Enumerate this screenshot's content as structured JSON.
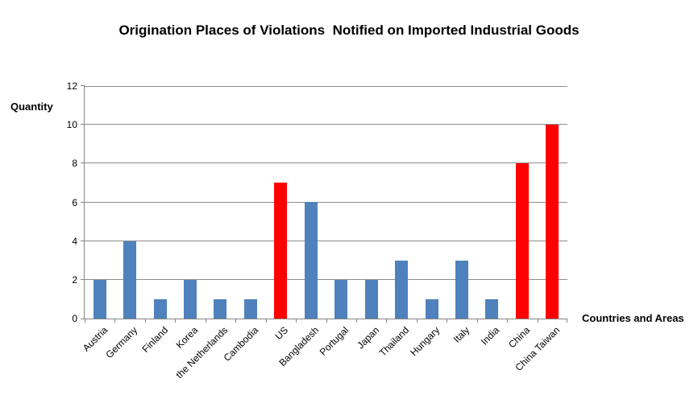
{
  "chart_data": {
    "type": "bar",
    "title": "Origination Places of Violations  Notified on Imported Industrial Goods",
    "ylabel": "Quantity",
    "xlabel": "Countries and Areas",
    "categories": [
      "Austria",
      "Germany",
      "Finland",
      "Korea",
      "the Netherlands",
      "Cambodia",
      "US",
      "Bangladesh",
      "Portugal",
      "Japan",
      "Thailand",
      "Hungary",
      "Italy",
      "India",
      "China",
      "China Taiwan"
    ],
    "values": [
      2,
      4,
      1,
      2,
      1,
      1,
      7,
      6,
      2,
      2,
      3,
      1,
      3,
      1,
      8,
      10
    ],
    "bar_colors": [
      "#4F81BD",
      "#4F81BD",
      "#4F81BD",
      "#4F81BD",
      "#4F81BD",
      "#4F81BD",
      "#FF0000",
      "#4F81BD",
      "#4F81BD",
      "#4F81BD",
      "#4F81BD",
      "#4F81BD",
      "#4F81BD",
      "#4F81BD",
      "#FF0000",
      "#FF0000"
    ],
    "highlighted_categories": [
      "US",
      "China",
      "China Taiwan"
    ],
    "default_color": "#4F81BD",
    "highlight_color": "#FF0000",
    "ylim": [
      0,
      12
    ],
    "yticks": [
      0,
      2,
      4,
      6,
      8,
      10,
      12
    ],
    "grid": true,
    "gridline_color": "#8C8C8C",
    "axis_color": "#848484",
    "legend": "none"
  }
}
